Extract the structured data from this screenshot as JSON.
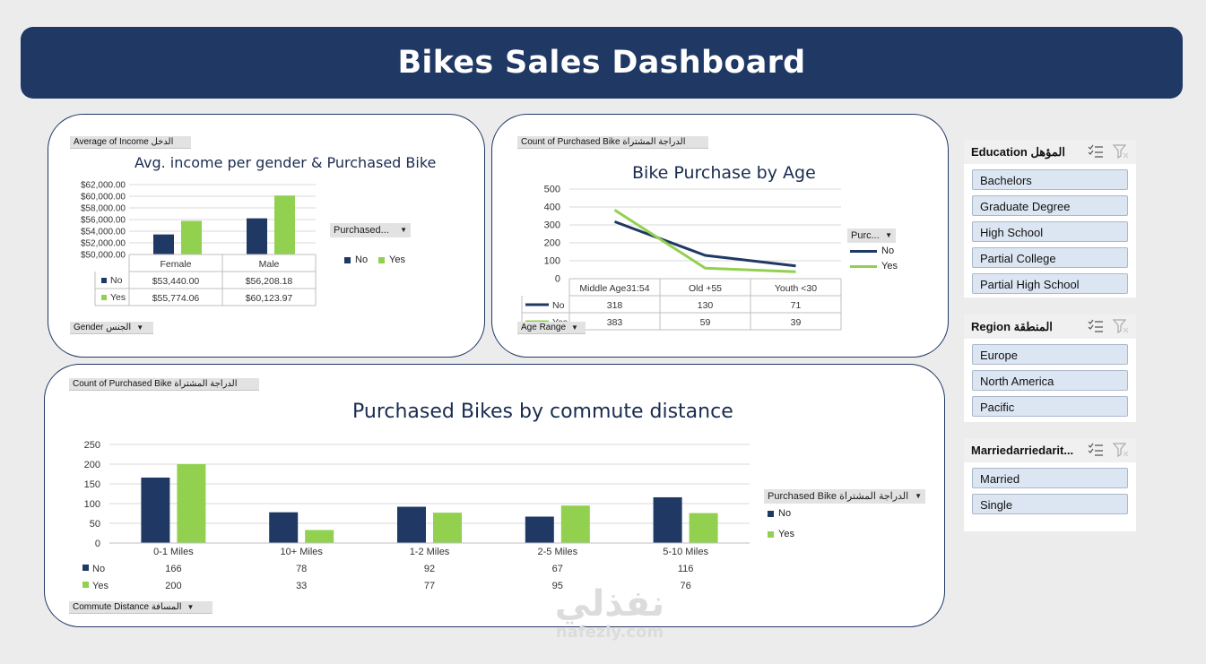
{
  "header": {
    "title": "Bikes Sales Dashboard"
  },
  "colors": {
    "navy": "#1f3864",
    "green": "#92d050"
  },
  "income_panel": {
    "field_value": "Average of Income الدخل",
    "field_axis": "Gender الجنس",
    "legend_field": "Purchased...",
    "legend_no": "No",
    "legend_yes": "Yes",
    "chart_data": {
      "type": "bar",
      "title": "Avg. income per gender & Purchased Bike",
      "categories": [
        "Female",
        "Male"
      ],
      "series": [
        {
          "name": "No",
          "values": [
            53440.0,
            56208.18
          ],
          "labels": [
            "$53,440.00",
            "$56,208.18"
          ]
        },
        {
          "name": "Yes",
          "values": [
            55774.06,
            60123.97
          ],
          "labels": [
            "$55,774.06",
            "$60,123.97"
          ]
        }
      ],
      "ylim": [
        50000,
        62000
      ],
      "yticks": [
        "$50,000.00",
        "$52,000.00",
        "$54,000.00",
        "$56,000.00",
        "$58,000.00",
        "$60,000.00",
        "$62,000.00"
      ],
      "grid": true
    }
  },
  "age_panel": {
    "field_value": "Count of Purchased Bike الدراجة المشتراة",
    "field_axis": "Age Range",
    "legend_field": "Purc...",
    "legend_no": "No",
    "legend_yes": "Yes",
    "chart_data": {
      "type": "line",
      "title": "Bike Purchase by Age",
      "categories": [
        "Middle Age31:54",
        "Old +55",
        "Youth <30"
      ],
      "series": [
        {
          "name": "No",
          "values": [
            318,
            130,
            71
          ]
        },
        {
          "name": "Yes",
          "values": [
            383,
            59,
            39
          ]
        }
      ],
      "ylim": [
        0,
        500
      ],
      "yticks": [
        "0",
        "100",
        "200",
        "300",
        "400",
        "500"
      ],
      "grid": true
    }
  },
  "commute_panel": {
    "field_value": "Count of Purchased Bike الدراجة المشتراة",
    "field_axis": "Commute Distance المسافة",
    "legend_field": "Purchased Bike الدراجة المشتراة",
    "legend_no": "No",
    "legend_yes": "Yes",
    "chart_data": {
      "type": "bar",
      "title": "Purchased Bikes by commute distance",
      "categories": [
        "0-1 Miles",
        "10+ Miles",
        "1-2 Miles",
        "2-5 Miles",
        "5-10 Miles"
      ],
      "series": [
        {
          "name": "No",
          "values": [
            166,
            78,
            92,
            67,
            116
          ]
        },
        {
          "name": "Yes",
          "values": [
            200,
            33,
            77,
            95,
            76
          ]
        }
      ],
      "ylim": [
        0,
        250
      ],
      "yticks": [
        "0",
        "50",
        "100",
        "150",
        "200",
        "250"
      ],
      "grid": true
    }
  },
  "slicers": {
    "education": {
      "title": "Education المؤهل",
      "items": [
        "Bachelors",
        "Graduate Degree",
        "High School",
        "Partial College",
        "Partial High School"
      ]
    },
    "region": {
      "title": "Region المنطقة",
      "items": [
        "Europe",
        "North America",
        "Pacific"
      ]
    },
    "marital": {
      "title": "Marriedarriedarit...",
      "items": [
        "Married",
        "Single"
      ]
    }
  },
  "watermark": {
    "arabic": "نفذلي",
    "latin": "nafezly.com"
  }
}
